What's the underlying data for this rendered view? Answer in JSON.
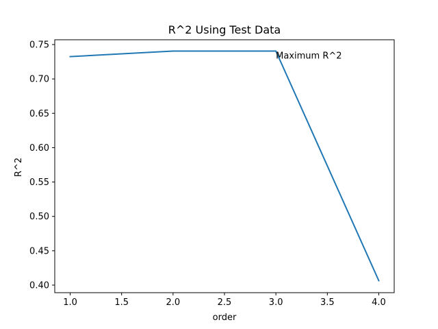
{
  "chart_data": {
    "type": "line",
    "title": "R^2 Using Test Data",
    "xlabel": "order",
    "ylabel": "R^2",
    "xlim": [
      0.85,
      4.15
    ],
    "ylim": [
      0.389,
      0.757
    ],
    "xticks": [
      1.0,
      1.5,
      2.0,
      2.5,
      3.0,
      3.5,
      4.0
    ],
    "xtick_labels": [
      "1.0",
      "1.5",
      "2.0",
      "2.5",
      "3.0",
      "3.5",
      "4.0"
    ],
    "yticks": [
      0.4,
      0.45,
      0.5,
      0.55,
      0.6,
      0.65,
      0.7,
      0.75
    ],
    "ytick_labels": [
      "0.40",
      "0.45",
      "0.50",
      "0.55",
      "0.60",
      "0.65",
      "0.70",
      "0.75"
    ],
    "grid": false,
    "series": [
      {
        "x": [
          1,
          2,
          3,
          4
        ],
        "y": [
          0.7325,
          0.7405,
          0.7405,
          0.4065
        ],
        "color": "#1f77b4"
      }
    ],
    "annotations": [
      {
        "text": "Maximum R^2",
        "x": 3.0,
        "y": 0.7405
      }
    ]
  }
}
